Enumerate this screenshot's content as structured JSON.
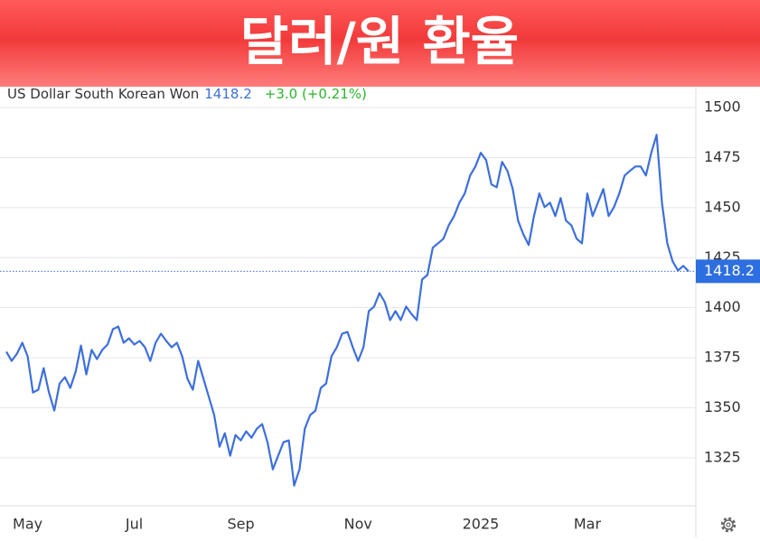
{
  "banner": "달러/원 환율",
  "chart_data": {
    "type": "line",
    "title": "US Dollar South Korean Won",
    "last_price": 1418.2,
    "change": "+3.0 (+0.21%)",
    "categories": [
      null,
      null,
      null,
      null,
      "May",
      null,
      null,
      null,
      null,
      null,
      null,
      null,
      null,
      null,
      null,
      null,
      null,
      null,
      null,
      null,
      null,
      null,
      null,
      null,
      "Jul",
      null,
      null,
      null,
      null,
      null,
      null,
      null,
      null,
      null,
      null,
      null,
      null,
      null,
      null,
      null,
      null,
      null,
      null,
      null,
      "Sep",
      null,
      null,
      null,
      null,
      null,
      null,
      null,
      null,
      null,
      null,
      null,
      null,
      null,
      null,
      null,
      null,
      null,
      null,
      null,
      null,
      null,
      "Nov",
      null,
      null,
      null,
      null,
      null,
      null,
      null,
      null,
      null,
      null,
      null,
      null,
      null,
      null,
      null,
      null,
      null,
      null,
      null,
      null,
      null,
      null,
      "2025",
      null,
      null,
      null,
      null,
      null,
      null,
      null,
      null,
      null,
      null,
      null,
      null,
      null,
      null,
      null,
      null,
      null,
      null,
      null,
      "Mar",
      null,
      null,
      null,
      null,
      null,
      null,
      null,
      null,
      null,
      null,
      null,
      null,
      null,
      null,
      null,
      null,
      null,
      null,
      null
    ],
    "series": [
      {
        "name": "US Dollar South Korean Won",
        "color": "#3d6fdc",
        "values": [
          1378,
          1373.4,
          1377,
          1382.5,
          1375.7,
          1357.6,
          1359,
          1369.8,
          1357.6,
          1348.6,
          1362.1,
          1365.3,
          1359.9,
          1368,
          1381.1,
          1366.7,
          1378.9,
          1374.3,
          1378.9,
          1381.6,
          1389.3,
          1390.6,
          1382.5,
          1384.7,
          1381.6,
          1383.4,
          1380.2,
          1373.4,
          1382.5,
          1387,
          1383.4,
          1380.2,
          1382.5,
          1375.7,
          1364.4,
          1359,
          1373.4,
          1364.4,
          1355.4,
          1346.3,
          1330.5,
          1337.3,
          1326,
          1336.4,
          1333.7,
          1338.2,
          1335,
          1339.5,
          1341.8,
          1332.8,
          1319.2,
          1326,
          1332.8,
          1333.7,
          1311.1,
          1319.2,
          1339.5,
          1346.3,
          1348.6,
          1359.9,
          1362.1,
          1375.7,
          1380.2,
          1387,
          1387.9,
          1380.2,
          1373.4,
          1380.2,
          1398.3,
          1400.6,
          1407.3,
          1402.8,
          1393.8,
          1398.3,
          1393.8,
          1400.6,
          1396.9,
          1393.8,
          1414.1,
          1416.4,
          1430,
          1432.2,
          1434.5,
          1441.2,
          1445.8,
          1452.5,
          1457.1,
          1466.1,
          1470.6,
          1477.4,
          1473.8,
          1461.6,
          1460.2,
          1472.9,
          1468.4,
          1459.3,
          1443.5,
          1436.7,
          1431.3,
          1445.8,
          1457.1,
          1450.3,
          1452.5,
          1445.8,
          1454.8,
          1443.5,
          1441.2,
          1434.5,
          1432.2,
          1457.1,
          1445.8,
          1452.5,
          1459.3,
          1445.8,
          1450.3,
          1457.1,
          1466.1,
          1468.4,
          1470.6,
          1470.6,
          1466.1,
          1477.4,
          1486.4,
          1452.5,
          1432.2,
          1423.2,
          1418.6,
          1420.9,
          1418.2
        ]
      }
    ],
    "ylim": [
      1301,
      1510
    ],
    "yticks": [
      1325,
      1350,
      1375,
      1400,
      1425,
      1450,
      1475,
      1500
    ],
    "grid": true
  }
}
